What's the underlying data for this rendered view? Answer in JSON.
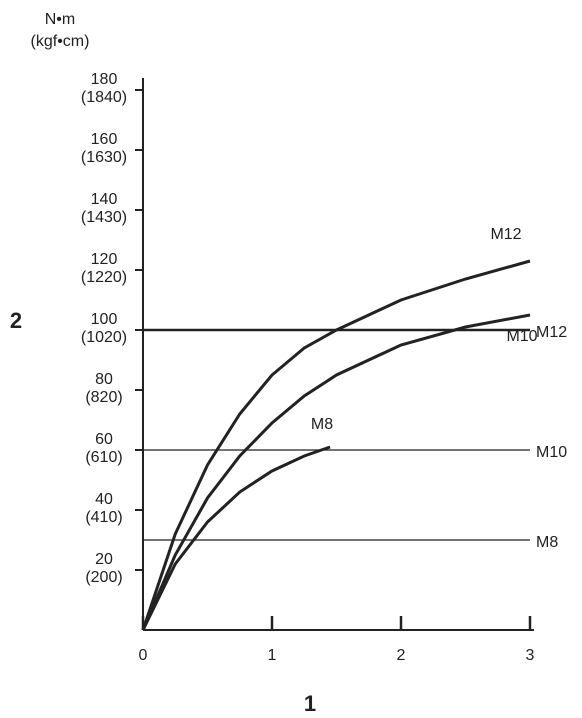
{
  "chart_data": {
    "type": "line",
    "x_label": "1",
    "y_label": "2",
    "y_unit": "N•m",
    "y_unit_alt": "(kgf•cm)",
    "xlim": [
      0,
      3
    ],
    "xticks": [
      0,
      1,
      2,
      3
    ],
    "ylim": [
      0,
      180
    ],
    "yticks": [
      {
        "value": 20,
        "label": "20",
        "alt_label": "(200)"
      },
      {
        "value": 40,
        "label": "40",
        "alt_label": "(410)"
      },
      {
        "value": 60,
        "label": "60",
        "alt_label": "(610)"
      },
      {
        "value": 80,
        "label": "80",
        "alt_label": "(820)"
      },
      {
        "value": 100,
        "label": "100",
        "alt_label": "(1020)"
      },
      {
        "value": 120,
        "label": "120",
        "alt_label": "(1220)"
      },
      {
        "value": 140,
        "label": "140",
        "alt_label": "(1430)"
      },
      {
        "value": 160,
        "label": "160",
        "alt_label": "(1630)"
      },
      {
        "value": 180,
        "label": "180",
        "alt_label": "(1840)"
      }
    ],
    "series": [
      {
        "name": "M12",
        "color": "#222222",
        "x": [
          0,
          0.25,
          0.5,
          0.75,
          1,
          1.25,
          1.5,
          2,
          2.5,
          3
        ],
        "values": [
          0,
          32,
          55,
          72,
          85,
          94,
          100,
          110,
          117,
          123
        ]
      },
      {
        "name": "M10",
        "color": "#222222",
        "x": [
          0,
          0.25,
          0.5,
          0.75,
          1,
          1.25,
          1.5,
          2,
          2.5,
          3
        ],
        "values": [
          0,
          25,
          44,
          58,
          69,
          78,
          85,
          95,
          101,
          105
        ]
      },
      {
        "name": "M8",
        "color": "#222222",
        "x": [
          0,
          0.25,
          0.5,
          0.75,
          1,
          1.25,
          1.45
        ],
        "values": [
          0,
          22,
          36,
          46,
          53,
          58,
          61
        ]
      }
    ],
    "reference_lines": [
      {
        "name": "M12",
        "value": 100,
        "width": 2.5
      },
      {
        "name": "M10",
        "value": 60,
        "width": 1.2
      },
      {
        "name": "M8",
        "value": 30,
        "width": 1.2
      }
    ]
  }
}
